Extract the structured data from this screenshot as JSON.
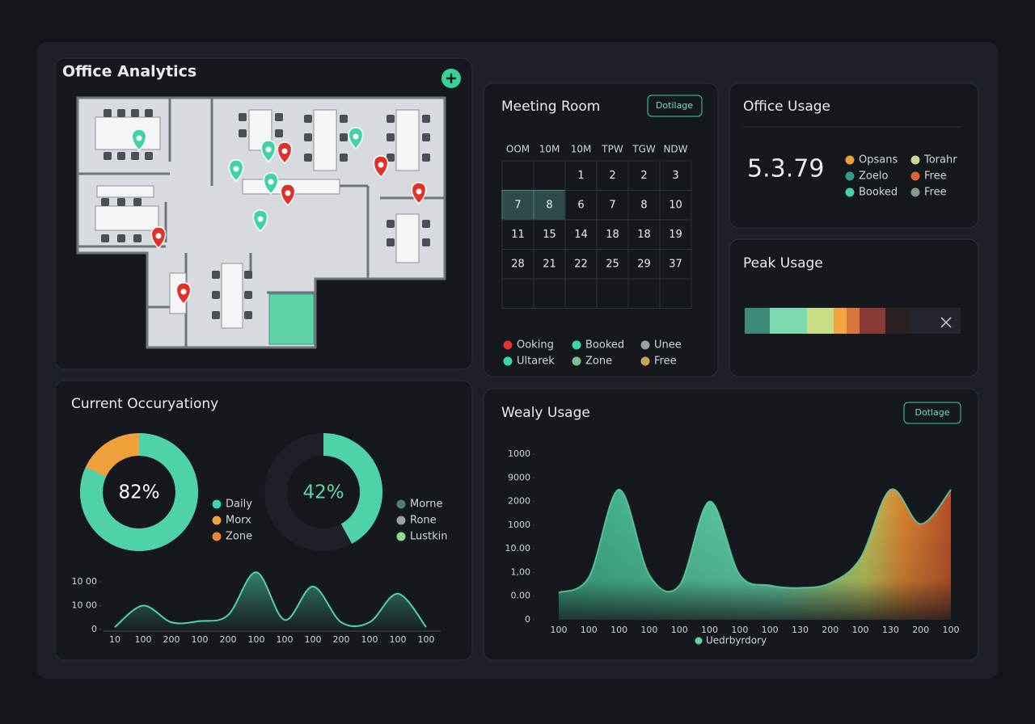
{
  "office_analytics": {
    "title": "Office Analytics"
  },
  "meeting_room": {
    "title": "Meeting Room",
    "button": "Dotilage",
    "weekdays": [
      "OOM",
      "10M",
      "10M",
      "TPW",
      "TGW",
      "NDW"
    ],
    "days": [
      [
        null,
        null,
        1,
        2,
        2,
        3
      ],
      [
        7,
        8,
        6,
        7,
        8,
        10
      ],
      [
        11,
        15,
        14,
        18,
        18,
        19
      ],
      [
        28,
        21,
        22,
        25,
        29,
        37
      ]
    ],
    "legend": [
      {
        "name": "Ooking",
        "color": "#e0322b"
      },
      {
        "name": "Ultarek",
        "color": "#3fd3a6"
      },
      {
        "name": "Booked",
        "color": "#3fd3a6"
      },
      {
        "name": "Zone",
        "color": "#7fbf8f"
      },
      {
        "name": "Unee",
        "color": "#9a9fa5"
      },
      {
        "name": "Free",
        "color": "#c9a35a"
      }
    ]
  },
  "office_usage": {
    "title": "Office Usage",
    "value": "5.3.79",
    "legend": [
      {
        "name": "Opsans",
        "color": "#f0a03a"
      },
      {
        "name": "Zoelo",
        "color": "#2f9f86"
      },
      {
        "name": "Booked",
        "color": "#3fd3a6"
      },
      {
        "name": "Torahr",
        "color": "#c8d894"
      },
      {
        "name": "Free",
        "color": "#d9643a"
      },
      {
        "name": "Free",
        "color": "#8a968f"
      }
    ]
  },
  "peak_usage": {
    "title": "Peak Usage"
  },
  "current_occupancy": {
    "title": "Current Occuryationy",
    "donuts": [
      {
        "value": 82,
        "value_label": "82%",
        "color": "#4fd1aa",
        "legend": [
          {
            "name": "Daily",
            "color": "#3fd3a6"
          },
          {
            "name": "Morx",
            "color": "#f0a03a"
          },
          {
            "name": "Zone",
            "color": "#e8843a"
          }
        ]
      },
      {
        "value": 42,
        "value_label": "42%",
        "color": "#4fd1aa",
        "legend": [
          {
            "name": "Morne",
            "color": "#4d7f78"
          },
          {
            "name": "Rone",
            "color": "#9a9fa5"
          },
          {
            "name": "Lustkin",
            "color": "#8fdc8f"
          }
        ]
      }
    ],
    "chart": {
      "type": "line",
      "categories": [
        10,
        100,
        200,
        100,
        200,
        100,
        100,
        100,
        200,
        100,
        100,
        100
      ],
      "values": [
        0.1,
        1.0,
        0.3,
        0.35,
        0.6,
        2.4,
        0.4,
        1.8,
        0.3,
        0.3,
        1.5,
        0.1
      ],
      "color": "#4fd1aa",
      "ylim": [
        0,
        2.8
      ],
      "yticks": [
        0,
        {
          "value": 1,
          "label": "10 00"
        },
        {
          "value": 2,
          "label": "10 00"
        }
      ]
    }
  },
  "weekly_usage": {
    "title": "Wealy Usage",
    "button": "Dotlage",
    "chart": {
      "type": "area",
      "categories": [
        100,
        100,
        100,
        100,
        100,
        100,
        100,
        100,
        130,
        200,
        100,
        130,
        200,
        100
      ],
      "values": [
        1.15,
        1.8,
        5.5,
        1.9,
        1.45,
        5.0,
        1.9,
        1.45,
        1.35,
        1.55,
        2.6,
        5.5,
        4.05,
        5.5
      ],
      "color": "#5fd3a5",
      "ylim": [
        0,
        7
      ],
      "yticks": [
        0,
        {
          "value": 1,
          "label": "0.00"
        },
        {
          "value": 2,
          "label": "1,00"
        },
        {
          "value": 3,
          "label": "10.00"
        },
        {
          "value": 4,
          "label": "1000"
        },
        {
          "value": 5,
          "label": "2000"
        },
        {
          "value": 6,
          "label": "9000"
        },
        {
          "value": 7,
          "label": "1000"
        }
      ],
      "legend": "Uedrbyrdory"
    }
  }
}
